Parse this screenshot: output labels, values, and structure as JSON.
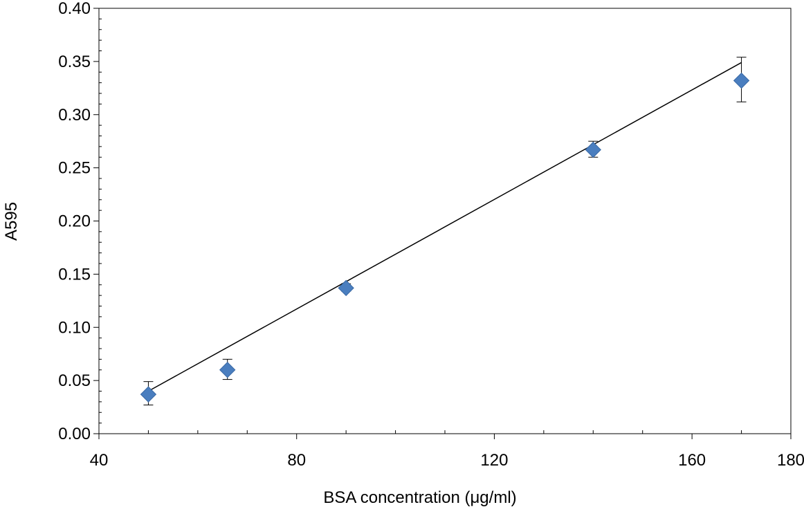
{
  "chart_data": {
    "type": "scatter",
    "title": "",
    "xlabel": "BSA concentration (μg/ml)",
    "ylabel": "A595",
    "xlim": [
      40,
      180
    ],
    "ylim": [
      0.0,
      0.4
    ],
    "x_major_ticks": [
      40,
      80,
      120,
      160,
      180
    ],
    "x_tick_labels": [
      "40",
      "80",
      "120",
      "160",
      "180"
    ],
    "x_minor_ticks": [
      50,
      60,
      70,
      90,
      100,
      110,
      130,
      140,
      150,
      170
    ],
    "y_major_ticks": [
      0.0,
      0.05,
      0.1,
      0.15,
      0.2,
      0.25,
      0.3,
      0.35,
      0.4
    ],
    "y_tick_labels": [
      "0.00",
      "0.05",
      "0.10",
      "0.15",
      "0.20",
      "0.25",
      "0.30",
      "0.35",
      "0.40"
    ],
    "y_minor_step": 0.01,
    "grid": false,
    "legend": "none",
    "series": [
      {
        "marker": "diamond",
        "color": "#4a7ebf",
        "points": [
          {
            "x": 50,
            "y": 0.037,
            "err_low": 0.027,
            "err_high": 0.049
          },
          {
            "x": 66,
            "y": 0.06,
            "err_low": 0.051,
            "err_high": 0.07
          },
          {
            "x": 90,
            "y": 0.137,
            "err_low": 0.134,
            "err_high": 0.141
          },
          {
            "x": 140,
            "y": 0.267,
            "err_low": 0.26,
            "err_high": 0.275
          },
          {
            "x": 170,
            "y": 0.332,
            "err_low": 0.312,
            "err_high": 0.354
          }
        ]
      }
    ],
    "fit_line": {
      "color": "#000000",
      "x": [
        50,
        170
      ],
      "y": [
        0.04,
        0.349
      ]
    }
  }
}
